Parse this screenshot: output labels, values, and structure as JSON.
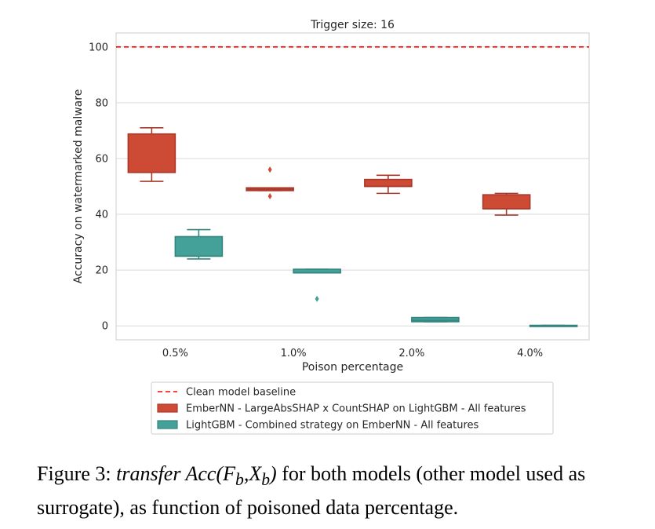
{
  "chart_data": {
    "type": "box",
    "title": "Trigger size: 16",
    "xlabel": "Poison percentage",
    "ylabel": "Accuracy on watermarked malware",
    "categories": [
      "0.5%",
      "1.0%",
      "2.0%",
      "4.0%"
    ],
    "yticks": [
      "0",
      "20",
      "40",
      "60",
      "80",
      "100"
    ],
    "ylim": [
      -5,
      105
    ],
    "grid": true,
    "baseline": {
      "name": "Clean model baseline",
      "value": 100,
      "color": "#ff0000"
    },
    "series": [
      {
        "name": "EmberNN - LargeAbsSHAP x CountSHAP on LightGBM - All features",
        "color": "#cd4a35",
        "boxes": [
          {
            "whislo": 51.8,
            "q1": 55.0,
            "med": 55.0,
            "q3": 68.8,
            "whishi": 71.0,
            "fliers": []
          },
          {
            "whislo": 48.5,
            "q1": 48.5,
            "med": 49.0,
            "q3": 49.5,
            "whishi": 49.5,
            "fliers": [
              56.0,
              46.5
            ]
          },
          {
            "whislo": 47.5,
            "q1": 50.0,
            "med": 50.0,
            "q3": 52.5,
            "whishi": 54.0,
            "fliers": []
          },
          {
            "whislo": 39.7,
            "q1": 42.0,
            "med": 42.0,
            "q3": 47.0,
            "whishi": 47.5,
            "fliers": []
          }
        ]
      },
      {
        "name": "LightGBM - Combined strategy on EmberNN - All features",
        "color": "#43a199",
        "boxes": [
          {
            "whislo": 24.0,
            "q1": 25.0,
            "med": 25.0,
            "q3": 32.0,
            "whishi": 34.5,
            "fliers": []
          },
          {
            "whislo": 19.0,
            "q1": 19.0,
            "med": 19.0,
            "q3": 20.3,
            "whishi": 20.3,
            "fliers": [
              9.7
            ]
          },
          {
            "whislo": 1.5,
            "q1": 1.5,
            "med": 2.0,
            "q3": 3.0,
            "whishi": 3.0,
            "fliers": []
          },
          {
            "whislo": 0.0,
            "q1": 0.0,
            "med": 0.0,
            "q3": 0.2,
            "whishi": 0.2,
            "fliers": []
          }
        ]
      }
    ],
    "legend_position": "bottom"
  },
  "caption": {
    "prefix": "Figure 3: ",
    "italic_part": "transfer Acc(F",
    "sub_b1": "b",
    "mid": ",X",
    "sub_b2": "b",
    "close": ")",
    "rest": " for both models (other model used as surrogate), as function of poisoned data percentage."
  }
}
